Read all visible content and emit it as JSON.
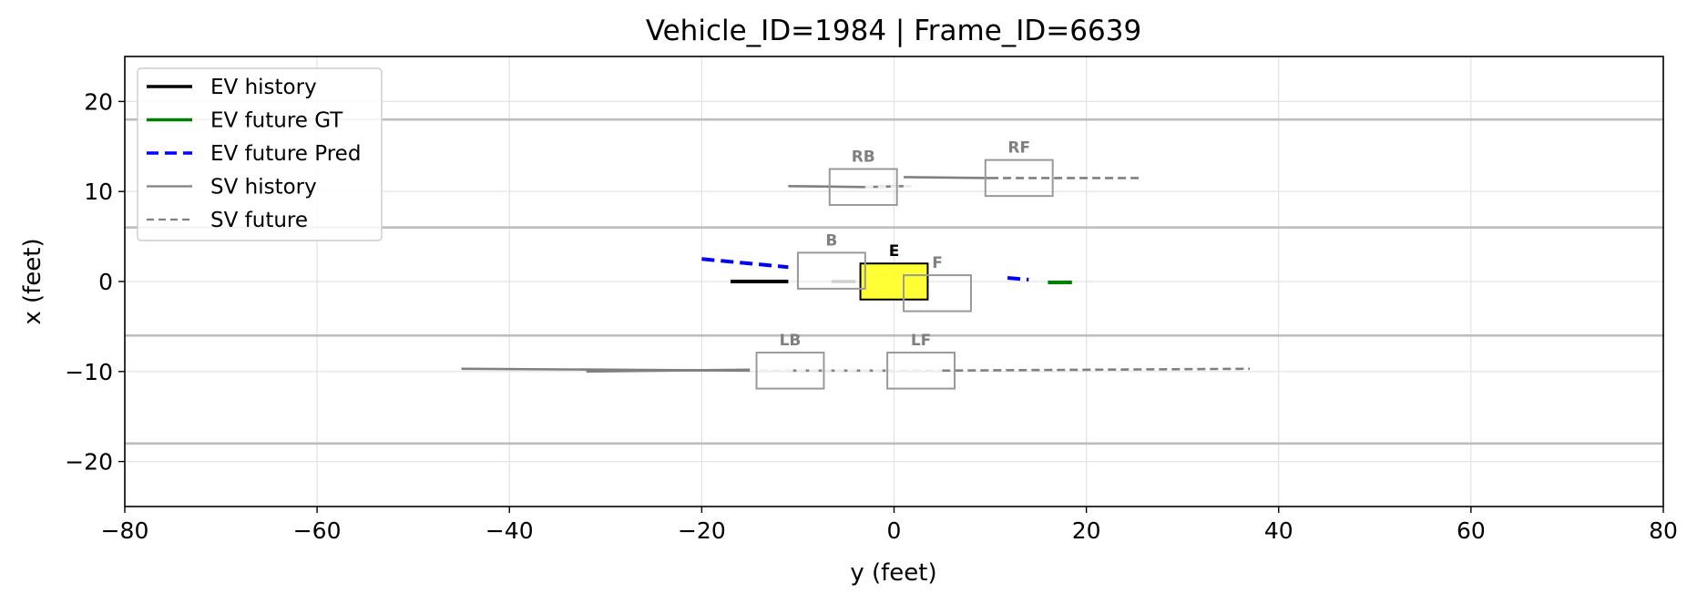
{
  "chart_data": {
    "type": "line",
    "title": "Vehicle_ID=1984  |  Frame_ID=6639",
    "xlabel": "y (feet)",
    "ylabel": "x (feet)",
    "xlim": [
      -80,
      80
    ],
    "ylim": [
      -25,
      25
    ],
    "xticks": [
      -80,
      -60,
      -40,
      -20,
      0,
      20,
      40,
      60,
      80
    ],
    "yticks": [
      -20,
      -10,
      0,
      10,
      20
    ],
    "xtick_labels": [
      "−80",
      "−60",
      "−40",
      "−20",
      "0",
      "20",
      "40",
      "60",
      "80"
    ],
    "ytick_labels": [
      "−20",
      "−10",
      "0",
      "10",
      "20"
    ],
    "grid": true,
    "legend_position": "top-left",
    "lane_lines": [
      18,
      6,
      -6,
      -18
    ],
    "legend": [
      {
        "label": "EV history",
        "color": "#000000",
        "style": "solid",
        "width": 3.4
      },
      {
        "label": "EV future GT",
        "color": "#008000",
        "style": "solid",
        "width": 3.4
      },
      {
        "label": "EV future Pred",
        "color": "#0000ff",
        "style": "dashed",
        "width": 3.4
      },
      {
        "label": "SV history",
        "color": "#808080",
        "style": "solid",
        "width": 2.2
      },
      {
        "label": "SV future",
        "color": "#808080",
        "style": "dashed",
        "width": 2.2
      }
    ],
    "series": [
      {
        "name": "EV history",
        "color": "#000000",
        "style": "solid",
        "width": 4,
        "points": [
          [
            -17,
            0
          ],
          [
            -11,
            0
          ]
        ]
      },
      {
        "name": "EV future GT",
        "color": "#008000",
        "style": "solid",
        "width": 4,
        "points": [
          [
            16,
            -0.1
          ],
          [
            18.5,
            -0.1
          ]
        ]
      },
      {
        "name": "EV future Pred",
        "color": "#0000ff",
        "style": "dashed",
        "width": 4,
        "points": [
          [
            -20,
            2.5
          ],
          [
            -11,
            1.6
          ]
        ]
      },
      {
        "name": "EV future Pred",
        "color": "#0000ff",
        "style": "dashed",
        "width": 4,
        "points": [
          [
            11.8,
            0.4
          ],
          [
            14,
            0.2
          ]
        ]
      },
      {
        "name": "SV history",
        "color": "#808080",
        "style": "solid",
        "width": 2.6,
        "points": [
          [
            -11,
            10.6
          ],
          [
            -3,
            10.5
          ],
          [
            1,
            10.6
          ]
        ]
      },
      {
        "name": "SV future",
        "color": "#ececec",
        "style": "dashed",
        "width": 2.6,
        "points": [
          [
            -3,
            10.5
          ],
          [
            2,
            10.6
          ]
        ]
      },
      {
        "name": "SV history",
        "color": "#808080",
        "style": "solid",
        "width": 2.6,
        "points": [
          [
            1,
            11.6
          ],
          [
            10,
            11.5
          ]
        ]
      },
      {
        "name": "SV future",
        "color": "#808080",
        "style": "dashed",
        "width": 2.6,
        "points": [
          [
            10,
            11.5
          ],
          [
            25.5,
            11.5
          ]
        ]
      },
      {
        "name": "SV history",
        "color": "#d0d0d0",
        "style": "solid",
        "width": 3.4,
        "points": [
          [
            -6.5,
            0
          ],
          [
            -4,
            0
          ]
        ]
      },
      {
        "name": "SV history",
        "color": "#808080",
        "style": "solid",
        "width": 2.6,
        "points": [
          [
            -45,
            -9.7
          ],
          [
            -15,
            -9.9
          ]
        ]
      },
      {
        "name": "SV history",
        "color": "#808080",
        "style": "solid",
        "width": 2.6,
        "points": [
          [
            -32,
            -10
          ],
          [
            -15,
            -9.8
          ]
        ]
      },
      {
        "name": "SV future",
        "color": "#808080",
        "style": "dashed",
        "width": 2.6,
        "points": [
          [
            -11,
            -9.9
          ],
          [
            0,
            -9.9
          ]
        ]
      },
      {
        "name": "SV future",
        "color": "#808080",
        "style": "dashed",
        "width": 2.6,
        "points": [
          [
            5,
            -9.9
          ],
          [
            37,
            -9.7
          ]
        ]
      },
      {
        "name": "SV future",
        "color": "#ececec",
        "style": "dashed",
        "width": 2.6,
        "points": [
          [
            -14,
            -9.9
          ],
          [
            5,
            -9.9
          ]
        ]
      }
    ],
    "vehicles": [
      {
        "label": "E",
        "center": [
          0,
          0
        ],
        "length": 7,
        "width": 4,
        "fill": "#ffff33",
        "stroke": "#000000",
        "ego": true
      },
      {
        "label": "RB",
        "center": [
          -3.2,
          10.5
        ],
        "length": 7,
        "width": 4,
        "fill": "none",
        "stroke": "#999999",
        "ego": false
      },
      {
        "label": "RF",
        "center": [
          13,
          11.5
        ],
        "length": 7,
        "width": 4,
        "fill": "none",
        "stroke": "#999999",
        "ego": false
      },
      {
        "label": "B",
        "center": [
          -6.5,
          1.2
        ],
        "length": 7,
        "width": 4,
        "fill": "none",
        "stroke": "#999999",
        "ego": false
      },
      {
        "label": "F",
        "center": [
          4.5,
          -1.3
        ],
        "length": 7,
        "width": 4,
        "fill": "none",
        "stroke": "#999999",
        "ego": false
      },
      {
        "label": "LB",
        "center": [
          -10.8,
          -9.9
        ],
        "length": 7,
        "width": 4,
        "fill": "none",
        "stroke": "#999999",
        "ego": false
      },
      {
        "label": "LF",
        "center": [
          2.8,
          -9.9
        ],
        "length": 7,
        "width": 4,
        "fill": "none",
        "stroke": "#999999",
        "ego": false
      }
    ]
  }
}
